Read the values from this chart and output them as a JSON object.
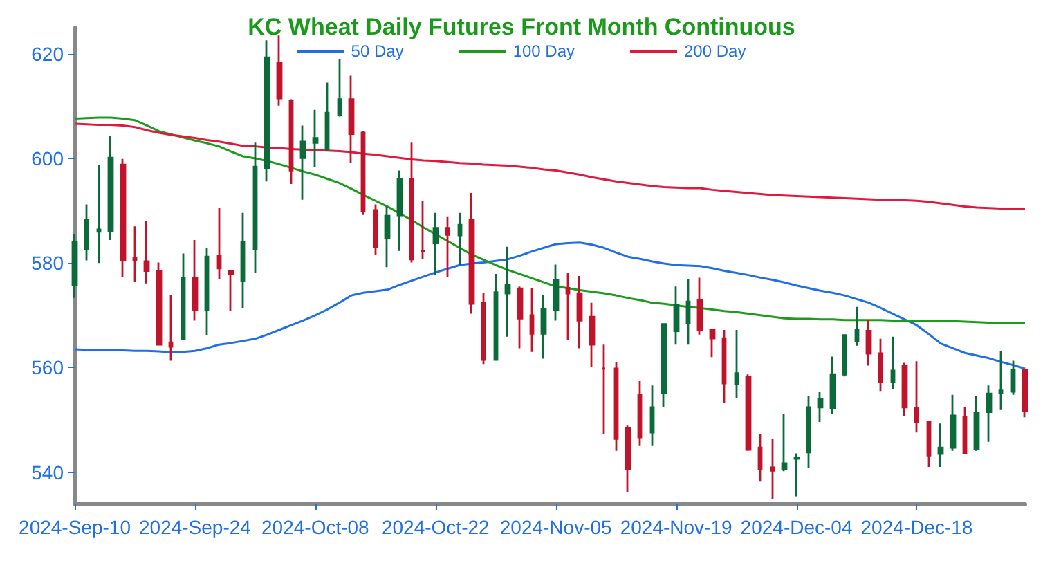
{
  "chart_data": {
    "type": "candlestick",
    "title": "KC Wheat Daily Futures Front Month Continuous",
    "categories": [
      "2024-Sep-10",
      null,
      null,
      null,
      null,
      null,
      null,
      null,
      null,
      null,
      "2024-Sep-24",
      null,
      null,
      null,
      null,
      null,
      null,
      null,
      null,
      null,
      "2024-Oct-08",
      null,
      null,
      null,
      null,
      null,
      null,
      null,
      null,
      null,
      "2024-Oct-22",
      null,
      null,
      null,
      null,
      null,
      null,
      null,
      null,
      null,
      "2024-Nov-05",
      null,
      null,
      null,
      null,
      null,
      null,
      null,
      null,
      null,
      "2024-Nov-19",
      null,
      null,
      null,
      null,
      null,
      null,
      null,
      null,
      null,
      "2024-Dec-04",
      null,
      null,
      null,
      null,
      null,
      null,
      null,
      null,
      null,
      "2024-Dec-18",
      null,
      null,
      null,
      null,
      null,
      null,
      null,
      null,
      null
    ],
    "ohlc": [
      [
        575.8,
        585.5,
        573.3,
        584.0
      ],
      [
        582.7,
        591.2,
        580.5,
        588.3
      ],
      [
        586.0,
        598.8,
        580.0,
        586.4
      ],
      [
        586.1,
        604.3,
        584.4,
        600.1
      ],
      [
        598.8,
        599.9,
        577.4,
        580.5
      ],
      [
        580.9,
        587.0,
        576.4,
        580.5
      ],
      [
        580.3,
        588.0,
        576.1,
        578.5
      ],
      [
        578.5,
        580.1,
        564.4,
        564.4
      ],
      [
        564.8,
        573.9,
        561.3,
        564.0
      ],
      [
        565.5,
        581.8,
        565.5,
        577.2
      ],
      [
        577.2,
        584.4,
        569.0,
        571.1
      ],
      [
        571.1,
        582.9,
        566.2,
        581.2
      ],
      [
        581.4,
        590.6,
        577.0,
        579.0
      ],
      [
        578.4,
        578.6,
        570.9,
        577.9
      ],
      [
        576.6,
        589.6,
        571.4,
        584.0
      ],
      [
        582.7,
        603.0,
        578.1,
        598.4
      ],
      [
        598.2,
        622.6,
        595.6,
        619.3
      ],
      [
        618.3,
        623.5,
        610.1,
        611.5
      ],
      [
        611.0,
        611.3,
        595.1,
        597.7
      ],
      [
        600.1,
        606.3,
        592.1,
        603.2
      ],
      [
        603.0,
        609.3,
        598.4,
        603.9
      ],
      [
        601.7,
        614.5,
        601.4,
        608.7
      ],
      [
        608.4,
        618.9,
        608.0,
        611.3
      ],
      [
        611.3,
        615.8,
        599.1,
        604.7
      ],
      [
        604.9,
        605.2,
        589.2,
        589.9
      ],
      [
        590.1,
        591.2,
        581.6,
        583.1
      ],
      [
        584.7,
        590.8,
        579.2,
        589.0
      ],
      [
        589.0,
        597.7,
        582.3,
        596.0
      ],
      [
        596.0,
        603.0,
        580.1,
        580.7
      ],
      [
        582.3,
        591.9,
        580.7,
        582.3
      ],
      [
        583.8,
        589.6,
        577.7,
        586.7
      ],
      [
        586.7,
        588.8,
        577.4,
        585.4
      ],
      [
        585.3,
        589.6,
        579.6,
        587.3
      ],
      [
        588.2,
        593.4,
        570.3,
        572.2
      ],
      [
        572.4,
        574.2,
        560.7,
        561.5
      ],
      [
        561.5,
        577.9,
        561.4,
        574.4
      ],
      [
        574.2,
        583.1,
        565.9,
        575.8
      ],
      [
        575.1,
        575.5,
        563.7,
        569.4
      ],
      [
        570.0,
        575.2,
        563.0,
        566.5
      ],
      [
        566.5,
        573.8,
        561.7,
        571.1
      ],
      [
        571.1,
        579.7,
        569.0,
        576.8
      ],
      [
        575.2,
        578.1,
        565.2,
        574.2
      ],
      [
        574.2,
        577.5,
        563.7,
        569.0
      ],
      [
        569.7,
        572.4,
        560.1,
        564.4
      ],
      [
        559.8,
        564.4,
        547.3,
        559.8
      ],
      [
        559.8,
        561.1,
        544.1,
        546.4
      ],
      [
        548.4,
        548.9,
        536.2,
        540.6
      ],
      [
        554.8,
        557.4,
        545.0,
        546.7
      ],
      [
        547.6,
        556.6,
        545.0,
        552.4
      ],
      [
        555.2,
        568.5,
        552.4,
        568.3
      ],
      [
        567.0,
        575.5,
        564.4,
        572.0
      ],
      [
        568.5,
        577.0,
        564.4,
        572.6
      ],
      [
        572.9,
        577.2,
        566.3,
        567.2
      ],
      [
        567.2,
        567.2,
        562.0,
        565.6
      ],
      [
        565.6,
        567.2,
        553.2,
        557.0
      ],
      [
        556.9,
        567.2,
        554.1,
        558.9
      ],
      [
        558.3,
        558.7,
        544.1,
        544.3
      ],
      [
        544.7,
        547.3,
        538.2,
        540.6
      ],
      [
        540.9,
        546.4,
        534.9,
        540.3
      ],
      [
        540.6,
        551.1,
        540.2,
        541.7
      ],
      [
        542.6,
        543.6,
        535.4,
        542.8
      ],
      [
        543.8,
        554.6,
        540.8,
        552.4
      ],
      [
        552.4,
        555.3,
        549.6,
        554.0
      ],
      [
        552.2,
        562.1,
        551.1,
        558.7
      ],
      [
        558.7,
        566.3,
        558.3,
        566.2
      ],
      [
        565.0,
        571.6,
        564.2,
        567.2
      ],
      [
        567.0,
        569.1,
        560.4,
        562.7
      ],
      [
        562.7,
        565.5,
        555.4,
        557.2
      ],
      [
        557.2,
        565.9,
        555.9,
        559.4
      ],
      [
        560.4,
        560.9,
        550.8,
        552.4
      ],
      [
        552.2,
        561.2,
        547.6,
        549.6
      ],
      [
        549.6,
        549.6,
        541.0,
        543.2
      ],
      [
        543.5,
        549.3,
        541.0,
        544.7
      ],
      [
        544.7,
        554.8,
        544.1,
        550.8
      ],
      [
        550.6,
        552.4,
        543.5,
        543.6
      ],
      [
        544.5,
        554.6,
        544.1,
        551.3
      ],
      [
        551.5,
        556.6,
        545.8,
        555.0
      ],
      [
        555.2,
        563.1,
        551.9,
        555.6
      ],
      [
        555.4,
        561.3,
        554.8,
        559.5
      ],
      [
        559.5,
        559.8,
        550.5,
        551.7
      ]
    ],
    "colors": [
      "#0b6b3a",
      "#0b6b3a",
      "#0b6b3a",
      "#0b6b3a",
      "#c0142c",
      "#c0142c",
      "#c0142c",
      "#c0142c",
      "#c0142c",
      "#0b6b3a",
      "#c0142c",
      "#0b6b3a",
      "#c0142c",
      "#c0142c",
      "#0b6b3a",
      "#0b6b3a",
      "#0b6b3a",
      "#c0142c",
      "#c0142c",
      "#0b6b3a",
      "#0b6b3a",
      "#0b6b3a",
      "#0b6b3a",
      "#c0142c",
      "#c0142c",
      "#c0142c",
      "#0b6b3a",
      "#0b6b3a",
      "#c0142c",
      "#c0142c",
      "#0b6b3a",
      "#c0142c",
      "#0b6b3a",
      "#c0142c",
      "#c0142c",
      "#0b6b3a",
      "#0b6b3a",
      "#c0142c",
      "#c0142c",
      "#0b6b3a",
      "#0b6b3a",
      "#c0142c",
      "#c0142c",
      "#c0142c",
      "#c0142c",
      "#c0142c",
      "#c0142c",
      "#c0142c",
      "#0b6b3a",
      "#0b6b3a",
      "#0b6b3a",
      "#0b6b3a",
      "#c0142c",
      "#c0142c",
      "#c0142c",
      "#0b6b3a",
      "#c0142c",
      "#c0142c",
      "#c0142c",
      "#0b6b3a",
      "#0b6b3a",
      "#0b6b3a",
      "#0b6b3a",
      "#0b6b3a",
      "#0b6b3a",
      "#0b6b3a",
      "#c0142c",
      "#c0142c",
      "#0b6b3a",
      "#c0142c",
      "#c0142c",
      "#c0142c",
      "#0b6b3a",
      "#0b6b3a",
      "#c0142c",
      "#0b6b3a",
      "#0b6b3a",
      "#0b6b3a",
      "#0b6b3a",
      "#c0142c"
    ],
    "series": [
      {
        "type": "line",
        "name": "50 Day",
        "color": "#1f6fe8",
        "values": [
          563.5,
          563.4,
          563.3,
          563.4,
          563.3,
          563.2,
          563.2,
          563.1,
          562.9,
          563.0,
          563.2,
          563.7,
          564.4,
          564.7,
          565.1,
          565.5,
          566.3,
          567.2,
          568.1,
          569.0,
          570.0,
          571.1,
          572.4,
          573.8,
          574.3,
          574.6,
          574.9,
          575.8,
          576.6,
          577.4,
          578.2,
          578.9,
          579.6,
          579.9,
          580.1,
          580.4,
          580.7,
          581.4,
          582.2,
          582.9,
          583.6,
          583.8,
          583.9,
          583.5,
          582.9,
          582.0,
          581.2,
          580.8,
          580.3,
          579.9,
          579.6,
          579.5,
          579.4,
          579.0,
          578.5,
          578.1,
          577.7,
          577.2,
          576.8,
          576.3,
          575.7,
          575.2,
          574.7,
          574.3,
          573.8,
          573.1,
          572.4,
          571.4,
          570.3,
          569.2,
          568.1,
          566.4,
          564.6,
          563.7,
          562.8,
          562.3,
          561.8,
          561.1,
          560.5,
          559.8
        ]
      },
      {
        "type": "line",
        "name": "100 Day",
        "color": "#1c9c1c",
        "values": [
          607.6,
          607.7,
          607.8,
          607.8,
          607.6,
          607.3,
          606.3,
          605.2,
          604.6,
          604.0,
          603.4,
          602.9,
          602.3,
          601.3,
          600.4,
          600.0,
          599.5,
          598.9,
          598.2,
          597.5,
          596.9,
          596.1,
          595.3,
          594.2,
          593.0,
          591.9,
          590.8,
          589.5,
          588.2,
          586.8,
          585.5,
          584.2,
          582.9,
          581.6,
          580.6,
          579.6,
          578.7,
          577.9,
          577.1,
          576.3,
          575.5,
          575.2,
          574.8,
          574.5,
          574.2,
          573.8,
          573.3,
          572.9,
          572.4,
          572.2,
          571.9,
          571.6,
          571.4,
          571.1,
          570.8,
          570.6,
          570.3,
          570.0,
          569.7,
          569.4,
          569.3,
          569.3,
          569.2,
          569.2,
          569.1,
          569.1,
          569.1,
          569.1,
          569.0,
          569.0,
          569.0,
          569.0,
          568.9,
          568.9,
          568.8,
          568.7,
          568.6,
          568.6,
          568.5,
          568.5
        ]
      },
      {
        "type": "line",
        "name": "200 Day",
        "color": "#e0193f",
        "values": [
          606.6,
          606.5,
          606.4,
          606.4,
          606.3,
          606.0,
          605.4,
          604.9,
          604.5,
          604.2,
          603.9,
          603.5,
          603.2,
          602.8,
          602.4,
          602.3,
          602.1,
          602.0,
          601.8,
          601.7,
          601.6,
          601.5,
          601.4,
          601.2,
          600.9,
          600.7,
          600.4,
          600.1,
          599.8,
          599.6,
          599.5,
          599.3,
          599.1,
          599.0,
          598.8,
          598.7,
          598.6,
          598.4,
          598.2,
          597.9,
          597.7,
          597.3,
          596.9,
          596.4,
          596.0,
          595.6,
          595.3,
          595.0,
          594.7,
          594.5,
          594.4,
          594.3,
          594.3,
          594.0,
          593.8,
          593.6,
          593.4,
          593.2,
          593.0,
          592.9,
          592.8,
          592.7,
          592.6,
          592.5,
          592.4,
          592.3,
          592.2,
          592.1,
          592.0,
          592.0,
          591.9,
          591.7,
          591.4,
          591.1,
          590.8,
          590.6,
          590.5,
          590.4,
          590.3,
          590.3
        ]
      }
    ],
    "ylim": [
      534,
      625
    ],
    "yticks": [
      540,
      560,
      580,
      600,
      620
    ],
    "legend": "top",
    "grid": false,
    "marker": "none"
  }
}
